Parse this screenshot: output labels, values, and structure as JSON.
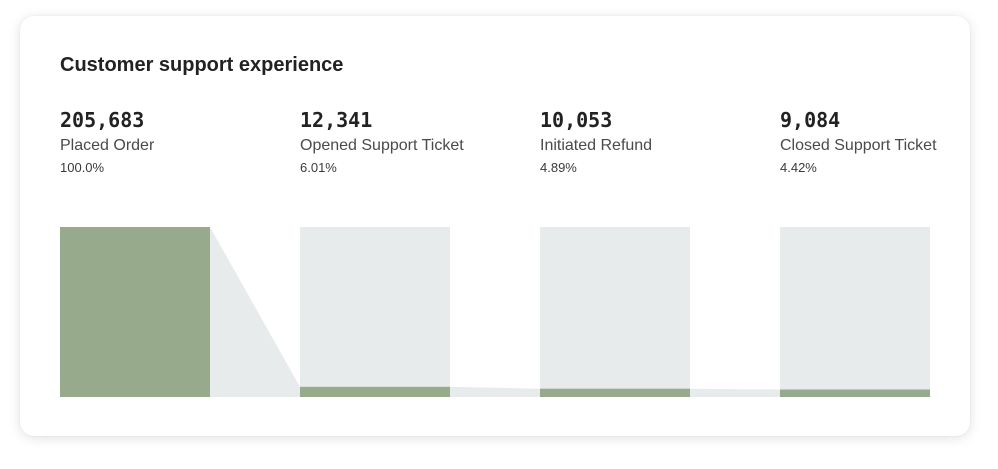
{
  "colors": {
    "bar": "#97aa8c",
    "track": "#e8ebec",
    "connector": "#e8ebec"
  },
  "chart_data": {
    "type": "bar",
    "subtype": "funnel",
    "title": "Customer support experience",
    "categories": [
      "Placed Order",
      "Opened Support Ticket",
      "Initiated Refund",
      "Closed Support Ticket"
    ],
    "values": [
      205683,
      12341,
      10053,
      9084
    ],
    "value_labels": [
      "205,683",
      "12,341",
      "10,053",
      "9,084"
    ],
    "percent_labels": [
      "100.0%",
      "6.01%",
      "4.89%",
      "4.42%"
    ],
    "percentages": [
      100.0,
      6.01,
      4.89,
      4.42
    ],
    "ylim": [
      0,
      205683
    ],
    "grid": false
  }
}
